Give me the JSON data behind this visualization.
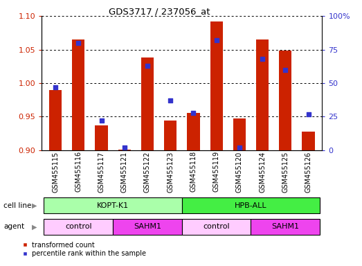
{
  "title": "GDS3717 / 237056_at",
  "samples": [
    "GSM455115",
    "GSM455116",
    "GSM455117",
    "GSM455121",
    "GSM455122",
    "GSM455123",
    "GSM455118",
    "GSM455119",
    "GSM455120",
    "GSM455124",
    "GSM455125",
    "GSM455126"
  ],
  "transformed_counts": [
    0.99,
    1.065,
    0.937,
    0.901,
    1.038,
    0.944,
    0.956,
    1.092,
    0.947,
    1.065,
    1.048,
    0.928
  ],
  "percentile_ranks": [
    47,
    80,
    22,
    2,
    63,
    37,
    28,
    82,
    2,
    68,
    60,
    27
  ],
  "ylim_left": [
    0.9,
    1.1
  ],
  "ylim_right": [
    0,
    100
  ],
  "yticks_left": [
    0.9,
    0.95,
    1.0,
    1.05,
    1.1
  ],
  "yticks_right": [
    0,
    25,
    50,
    75,
    100
  ],
  "bar_color": "#cc2200",
  "square_color": "#3333cc",
  "cl_colors": [
    "#aaffaa",
    "#44ee44"
  ],
  "ag_control_color": "#ffccff",
  "ag_sahm1_color": "#ee44ee",
  "cell_lines": [
    {
      "label": "KOPT-K1",
      "start": 0,
      "end": 6
    },
    {
      "label": "HPB-ALL",
      "start": 6,
      "end": 12
    }
  ],
  "agents": [
    {
      "label": "control",
      "start": 0,
      "end": 3
    },
    {
      "label": "SAHM1",
      "start": 3,
      "end": 6
    },
    {
      "label": "control",
      "start": 6,
      "end": 9
    },
    {
      "label": "SAHM1",
      "start": 9,
      "end": 12
    }
  ],
  "legend_items": [
    {
      "label": "transformed count",
      "color": "#cc2200"
    },
    {
      "label": "percentile rank within the sample",
      "color": "#3333cc"
    }
  ],
  "base_value": 0.9,
  "ylabel_left_color": "#cc2200",
  "ylabel_right_color": "#3333cc"
}
